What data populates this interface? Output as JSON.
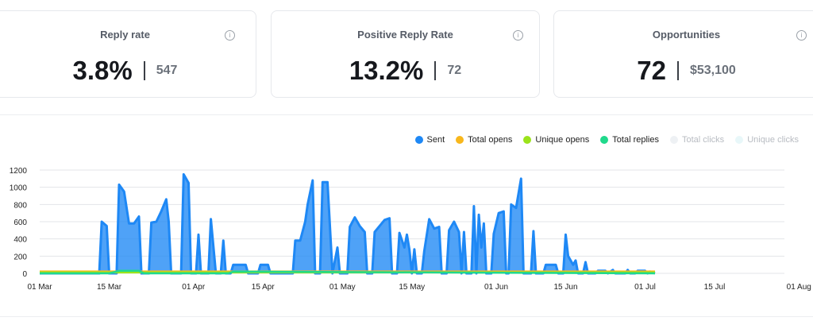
{
  "cards": [
    {
      "title": "Reply rate",
      "value": "3.8%",
      "sub": "547"
    },
    {
      "title": "Positive Reply Rate",
      "value": "13.2%",
      "sub": "72"
    },
    {
      "title": "Opportunities",
      "value": "72",
      "sub": "$53,100"
    }
  ],
  "info_glyph": "i",
  "legend": [
    {
      "label": "Sent",
      "color": "#1e88f5",
      "active": true
    },
    {
      "label": "Total opens",
      "color": "#f8b71c",
      "active": true
    },
    {
      "label": "Unique opens",
      "color": "#9be31b",
      "active": true
    },
    {
      "label": "Total replies",
      "color": "#20d98c",
      "active": true
    },
    {
      "label": "Total clicks",
      "color": "#e9eef3",
      "active": false
    },
    {
      "label": "Unique clicks",
      "color": "#e6f6f8",
      "active": false
    }
  ],
  "chart_data": {
    "type": "area",
    "x_tick_labels": [
      "01 Mar",
      "15 Mar",
      "01 Apr",
      "15 Apr",
      "01 May",
      "15 May",
      "01 Jun",
      "15 Jun",
      "01 Jul",
      "15 Jul",
      "01 Aug"
    ],
    "x_tick_day": [
      0,
      14,
      31,
      45,
      61,
      75,
      92,
      106,
      122,
      136,
      153
    ],
    "ylim": [
      0,
      1200
    ],
    "y_ticks": [
      0,
      200,
      400,
      600,
      800,
      1000,
      1200
    ],
    "grid": true,
    "legend_position": "top-right",
    "series": [
      {
        "name": "Sent",
        "color": "#1e88f5",
        "points": [
          [
            0,
            0
          ],
          [
            12,
            0
          ],
          [
            12.5,
            600
          ],
          [
            13.5,
            550
          ],
          [
            14,
            0
          ],
          [
            15.5,
            0
          ],
          [
            16,
            1030
          ],
          [
            17,
            950
          ],
          [
            18,
            580
          ],
          [
            19,
            580
          ],
          [
            20,
            660
          ],
          [
            20.5,
            0
          ],
          [
            22,
            0
          ],
          [
            22.5,
            590
          ],
          [
            23.5,
            600
          ],
          [
            24.5,
            720
          ],
          [
            25.5,
            860
          ],
          [
            26,
            600
          ],
          [
            26.5,
            0
          ],
          [
            28.5,
            0
          ],
          [
            29,
            1150
          ],
          [
            30,
            1050
          ],
          [
            30.5,
            0
          ],
          [
            31.5,
            0
          ],
          [
            32,
            450
          ],
          [
            32.5,
            0
          ],
          [
            34,
            0
          ],
          [
            34.5,
            630
          ],
          [
            35.5,
            0
          ],
          [
            36.5,
            0
          ],
          [
            37,
            380
          ],
          [
            37.5,
            0
          ],
          [
            38.5,
            0
          ],
          [
            39,
            100
          ],
          [
            40.5,
            100
          ],
          [
            41.5,
            100
          ],
          [
            42,
            0
          ],
          [
            44,
            0
          ],
          [
            44.5,
            100
          ],
          [
            46,
            100
          ],
          [
            46.5,
            0
          ],
          [
            51,
            0
          ],
          [
            51.5,
            380
          ],
          [
            52.5,
            380
          ],
          [
            53.5,
            600
          ],
          [
            54,
            800
          ],
          [
            55,
            1080
          ],
          [
            55.5,
            0
          ],
          [
            56.5,
            0
          ],
          [
            57,
            1060
          ],
          [
            58,
            1060
          ],
          [
            59,
            0
          ],
          [
            60,
            300
          ],
          [
            60.5,
            0
          ],
          [
            62,
            0
          ],
          [
            62.5,
            540
          ],
          [
            63.5,
            650
          ],
          [
            64.5,
            550
          ],
          [
            65.5,
            480
          ],
          [
            66,
            0
          ],
          [
            67,
            0
          ],
          [
            67.5,
            480
          ],
          [
            68.5,
            550
          ],
          [
            69.5,
            620
          ],
          [
            70.5,
            640
          ],
          [
            71,
            0
          ],
          [
            72,
            0
          ],
          [
            72.5,
            470
          ],
          [
            73.5,
            300
          ],
          [
            74,
            450
          ],
          [
            74.5,
            280
          ],
          [
            75,
            0
          ],
          [
            75.5,
            280
          ],
          [
            76,
            0
          ],
          [
            77,
            0
          ],
          [
            77.5,
            260
          ],
          [
            78.5,
            630
          ],
          [
            79.5,
            520
          ],
          [
            80.5,
            540
          ],
          [
            81,
            0
          ],
          [
            82,
            0
          ],
          [
            82.5,
            500
          ],
          [
            83.5,
            600
          ],
          [
            84.5,
            480
          ],
          [
            85,
            0
          ],
          [
            85.5,
            480
          ],
          [
            86,
            0
          ],
          [
            87,
            0
          ],
          [
            87.5,
            780
          ],
          [
            88,
            0
          ],
          [
            88.5,
            680
          ],
          [
            89,
            300
          ],
          [
            89.5,
            580
          ],
          [
            90,
            0
          ],
          [
            91,
            0
          ],
          [
            91.5,
            460
          ],
          [
            92.5,
            700
          ],
          [
            93.5,
            720
          ],
          [
            94,
            0
          ],
          [
            94.5,
            0
          ],
          [
            95,
            800
          ],
          [
            96,
            760
          ],
          [
            97,
            1100
          ],
          [
            97.5,
            0
          ],
          [
            99,
            0
          ],
          [
            99.5,
            490
          ],
          [
            100,
            0
          ],
          [
            101.5,
            0
          ],
          [
            102,
            100
          ],
          [
            104,
            100
          ],
          [
            104.5,
            0
          ],
          [
            105.5,
            0
          ],
          [
            106,
            450
          ],
          [
            106.5,
            200
          ],
          [
            107.5,
            100
          ],
          [
            108,
            150
          ],
          [
            108.5,
            0
          ],
          [
            109.5,
            0
          ],
          [
            110,
            130
          ],
          [
            110.5,
            0
          ],
          [
            112,
            0
          ],
          [
            112.5,
            30
          ],
          [
            114,
            30
          ],
          [
            114.5,
            0
          ],
          [
            115.5,
            40
          ],
          [
            116,
            0
          ],
          [
            118,
            0
          ],
          [
            118.5,
            40
          ],
          [
            119,
            0
          ],
          [
            120,
            0
          ],
          [
            120.5,
            30
          ],
          [
            122,
            30
          ],
          [
            122.5,
            0
          ],
          [
            123,
            20
          ],
          [
            124,
            0
          ]
        ]
      },
      {
        "name": "Total opens",
        "color": "#f8b71c",
        "points": [
          [
            0,
            22
          ],
          [
            124,
            22
          ]
        ]
      },
      {
        "name": "Unique opens",
        "color": "#9be31b",
        "points": [
          [
            0,
            10
          ],
          [
            124,
            10
          ]
        ]
      },
      {
        "name": "Total replies",
        "color": "#20d98c",
        "points": [
          [
            0,
            0
          ],
          [
            14,
            0
          ],
          [
            16,
            30
          ],
          [
            20,
            30
          ],
          [
            21,
            0
          ],
          [
            38,
            0
          ],
          [
            39,
            20
          ],
          [
            124,
            0
          ]
        ]
      }
    ]
  }
}
